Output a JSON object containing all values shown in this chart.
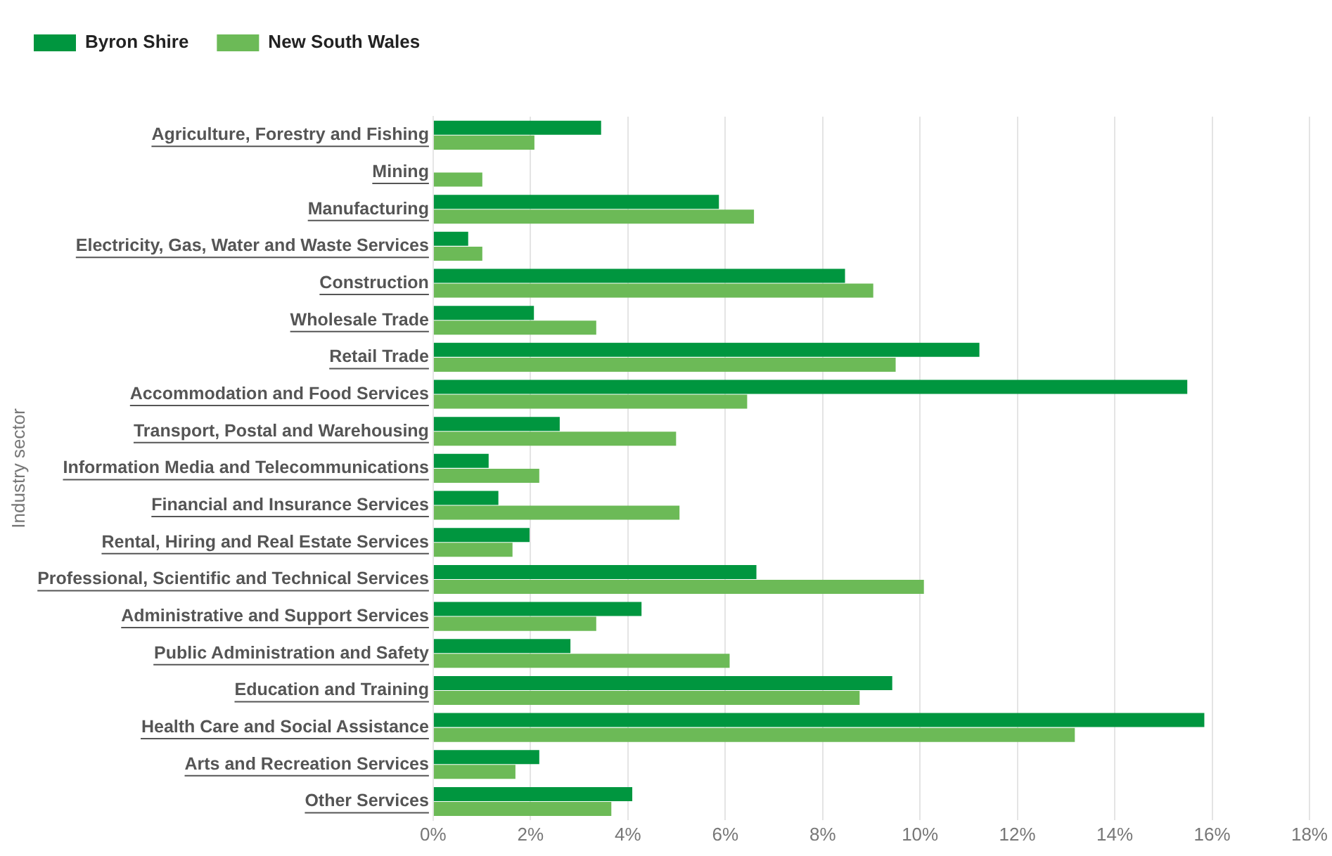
{
  "chart_data": {
    "type": "bar",
    "orientation": "horizontal",
    "ylabel": "Industry sector",
    "categories": [
      "Agriculture, Forestry and Fishing",
      "Mining",
      "Manufacturing",
      "Electricity, Gas, Water and Waste Services",
      "Construction",
      "Wholesale Trade",
      "Retail Trade",
      "Accommodation and Food Services",
      "Transport, Postal and Warehousing",
      "Information Media and Telecommunications",
      "Financial and Insurance Services",
      "Rental, Hiring and Real Estate Services",
      "Professional, Scientific and Technical Services",
      "Administrative and Support Services",
      "Public Administration and Safety",
      "Education and Training",
      "Health Care and Social Assistance",
      "Arts and Recreation Services",
      "Other Services"
    ],
    "series": [
      {
        "name": "Byron Shire",
        "color": "#00963f",
        "values": [
          3.45,
          0,
          5.87,
          0.72,
          8.46,
          2.07,
          11.22,
          15.49,
          2.6,
          1.14,
          1.34,
          1.98,
          6.64,
          4.28,
          2.82,
          9.43,
          15.84,
          2.18,
          4.09
        ]
      },
      {
        "name": "New South Wales",
        "color": "#6cba57",
        "values": [
          2.08,
          1.01,
          6.59,
          1.01,
          9.04,
          3.35,
          9.5,
          6.45,
          4.99,
          2.18,
          5.06,
          1.63,
          10.08,
          3.35,
          6.09,
          8.76,
          13.18,
          1.69,
          3.66
        ]
      }
    ],
    "xlim": [
      0,
      18
    ],
    "xticks": [
      {
        "value": 0,
        "label": "0%"
      },
      {
        "value": 2,
        "label": "2%"
      },
      {
        "value": 4,
        "label": "4%"
      },
      {
        "value": 6,
        "label": "6%"
      },
      {
        "value": 8,
        "label": "8%"
      },
      {
        "value": 10,
        "label": "10%"
      },
      {
        "value": 12,
        "label": "12%"
      },
      {
        "value": 14,
        "label": "14%"
      },
      {
        "value": 16,
        "label": "16%"
      },
      {
        "value": 18,
        "label": "18%"
      }
    ],
    "grid": "x",
    "legend": "top left"
  }
}
